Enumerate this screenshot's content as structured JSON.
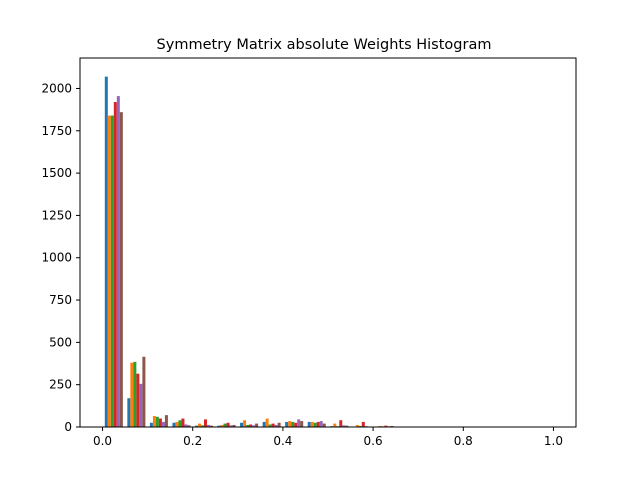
{
  "chart_data": {
    "type": "bar",
    "title": "Symmetry Matrix absolute Weights Histogram",
    "xlabel": "",
    "ylabel": "",
    "xlim": [
      -0.05,
      1.05
    ],
    "ylim": [
      0,
      2180
    ],
    "grid": false,
    "legend": "none",
    "x_ticks": [
      0.0,
      0.2,
      0.4,
      0.6,
      0.8,
      1.0
    ],
    "x_tick_labels": [
      "0.0",
      "0.2",
      "0.4",
      "0.6",
      "0.8",
      "1.0"
    ],
    "y_ticks": [
      0,
      250,
      500,
      750,
      1000,
      1250,
      1500,
      1750,
      2000
    ],
    "y_tick_labels": [
      "0",
      "250",
      "500",
      "750",
      "1000",
      "1250",
      "1500",
      "1750",
      "2000"
    ],
    "bin_edges": [
      0.0,
      0.05,
      0.1,
      0.15,
      0.2,
      0.25,
      0.3,
      0.35,
      0.4,
      0.45,
      0.5,
      0.55,
      0.6,
      0.65,
      0.7,
      0.75,
      0.8,
      0.85,
      0.9,
      0.95,
      1.0
    ],
    "series": [
      {
        "color": "#1f77b4",
        "values": [
          2070,
          170,
          25,
          25,
          8,
          8,
          25,
          30,
          30,
          30,
          5,
          2,
          3,
          0,
          0,
          0,
          0,
          0,
          0,
          0
        ]
      },
      {
        "color": "#ff7f0e",
        "values": [
          1840,
          380,
          65,
          30,
          20,
          12,
          40,
          50,
          35,
          30,
          20,
          12,
          6,
          0,
          0,
          0,
          0,
          0,
          0,
          0
        ]
      },
      {
        "color": "#2ca02c",
        "values": [
          1840,
          385,
          60,
          40,
          10,
          20,
          12,
          15,
          30,
          25,
          5,
          6,
          4,
          0,
          0,
          0,
          0,
          0,
          0,
          0
        ]
      },
      {
        "color": "#d62728",
        "values": [
          1920,
          315,
          50,
          50,
          45,
          25,
          15,
          20,
          25,
          30,
          40,
          30,
          8,
          0,
          0,
          0,
          0,
          0,
          0,
          0
        ]
      },
      {
        "color": "#9467bd",
        "values": [
          1955,
          255,
          30,
          15,
          12,
          10,
          10,
          12,
          45,
          35,
          10,
          5,
          4,
          0,
          0,
          0,
          0,
          0,
          0,
          0
        ]
      },
      {
        "color": "#8c564b",
        "values": [
          1860,
          415,
          70,
          10,
          8,
          12,
          20,
          25,
          35,
          20,
          8,
          3,
          6,
          0,
          0,
          0,
          0,
          0,
          0,
          0
        ]
      }
    ]
  }
}
